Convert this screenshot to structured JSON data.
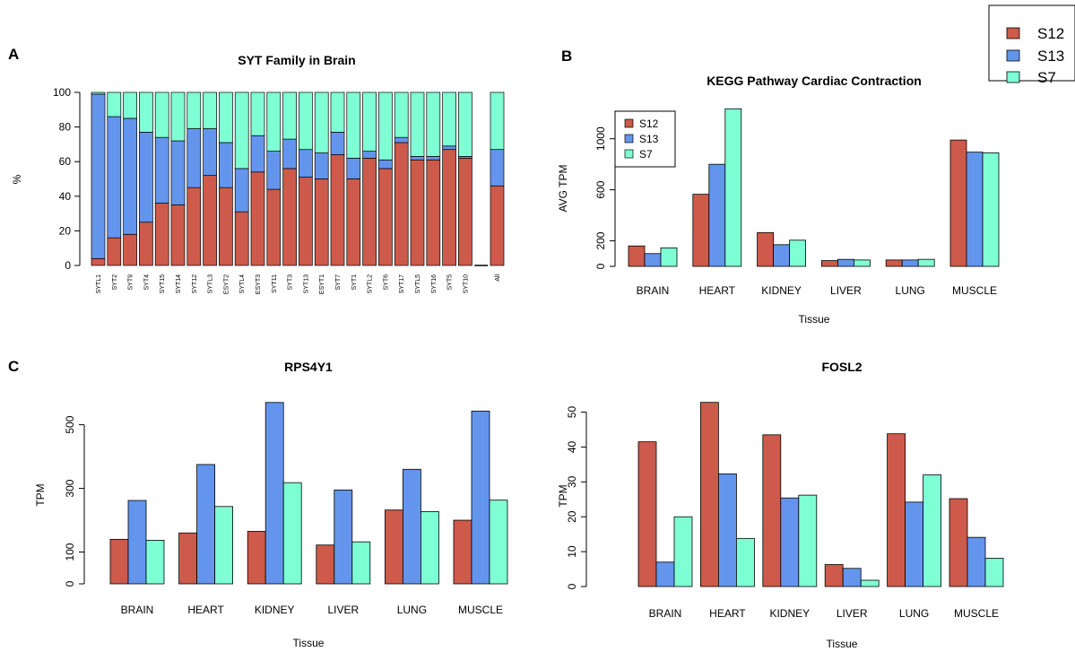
{
  "colors": {
    "S12": "#cd5a4a",
    "S13": "#6495ed",
    "S7": "#7fffd4"
  },
  "global_legend": {
    "entries": [
      "S12",
      "S13",
      "S7"
    ]
  },
  "chart_data": [
    {
      "id": "A",
      "panel_letter": "A",
      "type": "bar",
      "stacked": true,
      "title": "SYT Family in Brain",
      "xlabel": "",
      "ylabel": "%",
      "ylim": [
        0,
        100
      ],
      "yticks": [
        0,
        20,
        40,
        60,
        80,
        100
      ],
      "categories": [
        "SYTL1",
        "SYT2",
        "SYT9",
        "SYT4",
        "SYT15",
        "SYT14",
        "SYT12",
        "SYTL3",
        "ESYT2",
        "SYTL4",
        "ESYT3",
        "SYT11",
        "SYT3",
        "SYT13",
        "ESYT1",
        "SYT7",
        "SYT1",
        "SYTL2",
        "SYT6",
        "SYT17",
        "SYTL5",
        "SYT16",
        "SYT5",
        "SYT10",
        "",
        "All"
      ],
      "series": [
        {
          "name": "S12",
          "values": [
            4,
            16,
            18,
            25,
            36,
            35,
            45,
            52,
            45,
            31,
            54,
            44,
            56,
            51,
            50,
            64,
            50,
            62,
            56,
            71,
            61,
            61,
            67,
            62,
            0,
            46
          ]
        },
        {
          "name": "S13",
          "values": [
            95,
            70,
            67,
            52,
            38,
            37,
            34,
            27,
            26,
            25,
            21,
            22,
            17,
            16,
            15,
            13,
            12,
            4,
            5,
            3,
            2,
            2,
            2,
            1,
            0,
            21
          ]
        },
        {
          "name": "S7",
          "values": [
            1,
            14,
            15,
            23,
            26,
            28,
            21,
            21,
            29,
            44,
            25,
            34,
            27,
            33,
            35,
            23,
            38,
            34,
            39,
            26,
            37,
            37,
            31,
            37,
            0,
            33
          ]
        }
      ]
    },
    {
      "id": "B",
      "panel_letter": "B",
      "type": "bar",
      "title": "KEGG Pathway Cardiac Contraction",
      "xlabel": "Tissue",
      "ylabel": "AVG TPM",
      "ylim": [
        0,
        1230
      ],
      "yticks": [
        0,
        200,
        600,
        1000
      ],
      "categories": [
        "BRAIN",
        "HEART",
        "KIDNEY",
        "LIVER",
        "LUNG",
        "MUSCLE"
      ],
      "legend": {
        "position": "top-left",
        "entries": [
          "S12",
          "S13",
          "S7"
        ]
      },
      "series": [
        {
          "name": "S12",
          "values": [
            160,
            565,
            265,
            45,
            50,
            990
          ]
        },
        {
          "name": "S13",
          "values": [
            100,
            800,
            170,
            55,
            50,
            895
          ]
        },
        {
          "name": "S7",
          "values": [
            145,
            1235,
            205,
            50,
            55,
            890
          ]
        }
      ]
    },
    {
      "id": "C",
      "panel_letter": "C",
      "type": "bar",
      "title": "RPS4Y1",
      "xlabel": "Tissue",
      "ylabel": "TPM",
      "ylim": [
        0,
        575
      ],
      "yticks": [
        0,
        100,
        300,
        500
      ],
      "categories": [
        "BRAIN",
        "HEART",
        "KIDNEY",
        "LIVER",
        "LUNG",
        "MUSCLE"
      ],
      "series": [
        {
          "name": "S12",
          "values": [
            140,
            160,
            165,
            122,
            232,
            200
          ]
        },
        {
          "name": "S13",
          "values": [
            262,
            375,
            570,
            295,
            360,
            543
          ]
        },
        {
          "name": "S7",
          "values": [
            137,
            243,
            318,
            132,
            227,
            263
          ]
        }
      ]
    },
    {
      "id": "D",
      "panel_letter": "",
      "type": "bar",
      "title": "FOSL2",
      "xlabel": "Tissue",
      "ylabel": "TPM",
      "ylim": [
        0,
        54
      ],
      "yticks": [
        0,
        10,
        20,
        30,
        40,
        50
      ],
      "categories": [
        "BRAIN",
        "HEART",
        "KIDNEY",
        "LIVER",
        "LUNG",
        "MUSCLE"
      ],
      "series": [
        {
          "name": "S12",
          "values": [
            41.5,
            52.8,
            43.5,
            6.3,
            43.8,
            25.2
          ]
        },
        {
          "name": "S13",
          "values": [
            7,
            32.3,
            25.4,
            5.2,
            24.2,
            14.1
          ]
        },
        {
          "name": "S7",
          "values": [
            20,
            13.8,
            26.2,
            1.8,
            32,
            8.1
          ]
        }
      ]
    }
  ]
}
